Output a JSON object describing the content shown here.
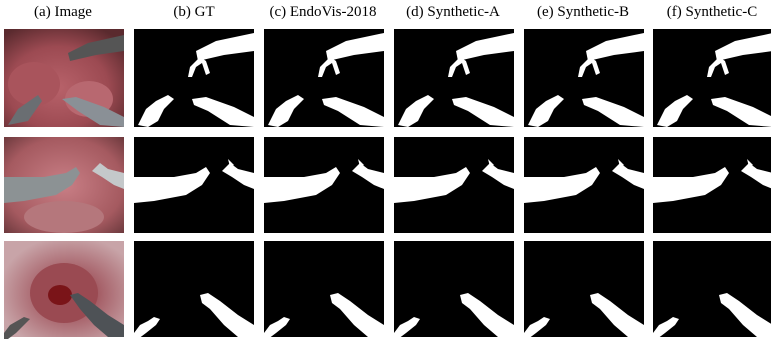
{
  "figure": {
    "column_headers": [
      "(a) Image",
      "(b) GT",
      "(c) EndoVis-2018",
      "(d) Synthetic-A",
      "(e) Synthetic-B",
      "(f) Synthetic-C"
    ]
  }
}
